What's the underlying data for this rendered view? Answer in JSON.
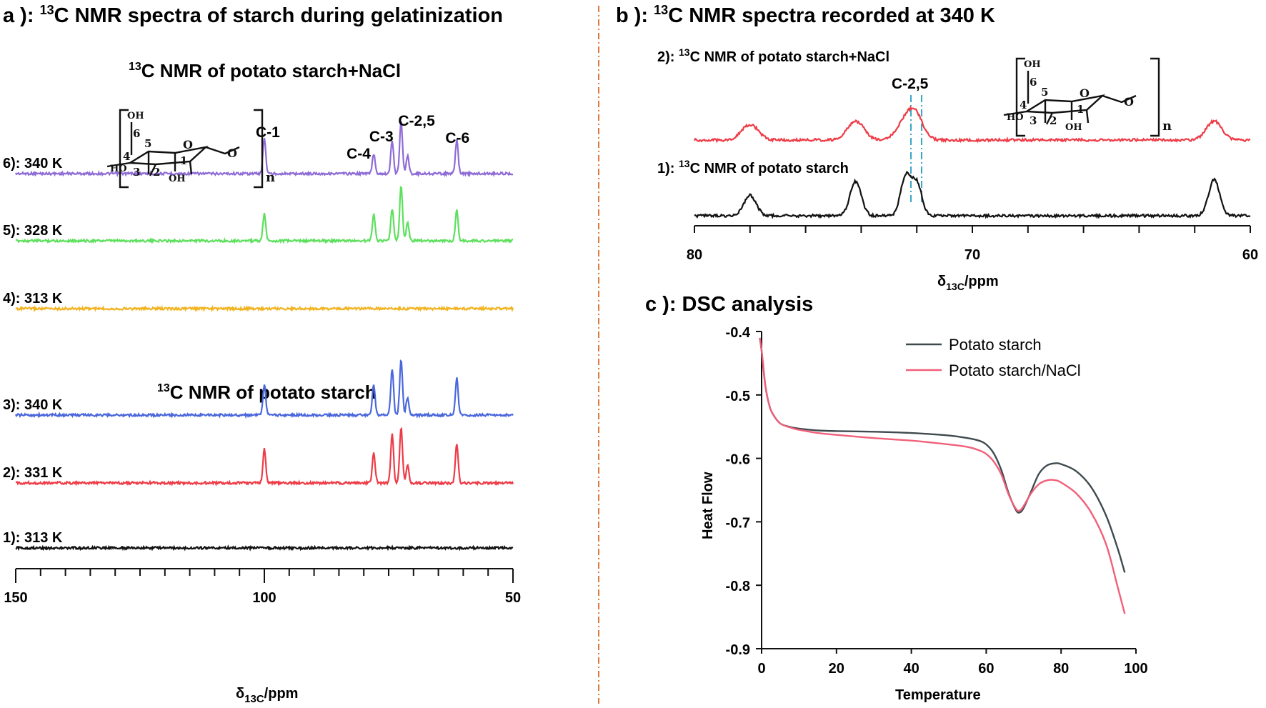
{
  "panel_a": {
    "title_prefix": "a ): ",
    "title_sup": "13",
    "title_rest": "C NMR spectra of starch during gelatinization",
    "group_top_sup": "13",
    "group_top": "C NMR of potato starch+NaCl",
    "group_bottom_sup": "13",
    "group_bottom": "C NMR of potato starch",
    "xlabel_main": "δ",
    "xlabel_sub": "13C",
    "xlabel_unit": "/ppm"
  },
  "panel_b": {
    "title_prefix": "b ): ",
    "title_sup": "13",
    "title_rest": "C NMR spectra recorded at 340 K",
    "trace2_prefix": "2): ",
    "trace2_sup": "13",
    "trace2_rest": "C NMR of potato starch+NaCl",
    "trace1_prefix": "1): ",
    "trace1_sup": "13",
    "trace1_rest": "C NMR of potato starch",
    "annotation": "C-2,5",
    "xlabel_main": "δ",
    "xlabel_sub": "13C",
    "xlabel_unit": "/ppm"
  },
  "panel_c": {
    "title": "c ): DSC analysis",
    "xlabel": "Temperature",
    "ylabel": "Heat Flow"
  },
  "structure": {
    "oh_top": "OH",
    "ho_left": "HO",
    "oh_bottom": "OH",
    "ring_o": "O",
    "link_o": "O",
    "n": "n",
    "c1": "1",
    "c2": "2",
    "c3": "3",
    "c4": "4",
    "c5": "5",
    "c6": "6"
  },
  "chart_data": [
    {
      "type": "line",
      "title": "a ): 13C NMR spectra of starch during gelatinization",
      "xlabel": "δ13C/ppm",
      "xlim": [
        150,
        50
      ],
      "xticks": [
        150,
        100,
        50
      ],
      "series": [
        {
          "name": "6): 340 K",
          "color": "#8e6bd6",
          "peaks": [
            [
              100.0,
              1.0
            ],
            [
              78.0,
              0.55
            ],
            [
              74.3,
              0.9
            ],
            [
              72.5,
              1.45
            ],
            [
              71.2,
              0.5
            ],
            [
              61.3,
              0.95
            ]
          ]
        },
        {
          "name": "5): 328 K",
          "color": "#5de05d",
          "peaks": [
            [
              100.0,
              0.75
            ],
            [
              78.0,
              0.75
            ],
            [
              74.3,
              0.9
            ],
            [
              72.5,
              1.55
            ],
            [
              71.2,
              0.5
            ],
            [
              61.3,
              0.85
            ]
          ]
        },
        {
          "name": "4): 313 K",
          "color": "#f2b320",
          "peaks": []
        },
        {
          "name": "3): 340 K",
          "color": "#4a67dc",
          "peaks": [
            [
              100.0,
              0.85
            ],
            [
              78.0,
              0.85
            ],
            [
              74.3,
              1.3
            ],
            [
              72.5,
              1.55
            ],
            [
              71.2,
              0.5
            ],
            [
              61.3,
              1.05
            ]
          ]
        },
        {
          "name": "2): 331 K",
          "color": "#ee3b46",
          "peaks": [
            [
              100.0,
              0.95
            ],
            [
              78.0,
              0.85
            ],
            [
              74.3,
              1.4
            ],
            [
              72.5,
              1.55
            ],
            [
              71.2,
              0.5
            ],
            [
              61.3,
              1.1
            ]
          ]
        },
        {
          "name": "1): 313 K",
          "color": "#111111",
          "peaks": []
        }
      ],
      "peak_labels": [
        {
          "text": "C-1",
          "ppm": 100.0
        },
        {
          "text": "C-4",
          "ppm": 78.0
        },
        {
          "text": "C-3",
          "ppm": 74.3
        },
        {
          "text": "C-2,5",
          "ppm": 72.5
        },
        {
          "text": "C-6",
          "ppm": 61.3
        }
      ]
    },
    {
      "type": "line",
      "title": "b ): 13C NMR spectra recorded at 340 K",
      "xlabel": "δ13C/ppm",
      "xlim": [
        80,
        60
      ],
      "xticks": [
        80,
        70,
        60
      ],
      "series": [
        {
          "name": "2): 13C NMR of potato starch+NaCl",
          "color": "#ee3b46",
          "peaks": [
            [
              78.0,
              0.45,
              0.3
            ],
            [
              74.2,
              0.55,
              0.3
            ],
            [
              72.3,
              0.7,
              0.35
            ],
            [
              72.0,
              0.35,
              0.25
            ],
            [
              61.3,
              0.55,
              0.28
            ]
          ]
        },
        {
          "name": "1): 13C NMR of potato starch",
          "color": "#111111",
          "peaks": [
            [
              78.0,
              0.6,
              0.22
            ],
            [
              74.2,
              1.0,
              0.2
            ],
            [
              72.4,
              1.15,
              0.18
            ],
            [
              72.0,
              0.95,
              0.18
            ],
            [
              61.3,
              1.05,
              0.2
            ]
          ]
        }
      ]
    },
    {
      "type": "line",
      "title": "c ): DSC analysis",
      "xlabel": "Temperature",
      "ylabel": "Heat Flow",
      "xlim": [
        0,
        100
      ],
      "ylim": [
        -0.9,
        -0.4
      ],
      "xticks": [
        0,
        20,
        40,
        60,
        80,
        100
      ],
      "yticks": [
        -0.4,
        -0.5,
        -0.6,
        -0.7,
        -0.8,
        -0.9
      ],
      "legend": "top-right",
      "series": [
        {
          "name": "Potato starch",
          "color": "#3f4a4f",
          "x": [
            -0.5,
            0,
            1,
            2,
            3,
            5,
            8,
            10,
            15,
            20,
            30,
            40,
            50,
            55,
            58,
            60,
            62,
            64,
            66,
            68,
            69,
            70,
            72,
            74,
            76,
            78,
            80,
            84,
            88,
            92,
            95,
            97
          ],
          "y": [
            -0.41,
            -0.43,
            -0.485,
            -0.515,
            -0.53,
            -0.545,
            -0.551,
            -0.553,
            -0.556,
            -0.557,
            -0.558,
            -0.56,
            -0.564,
            -0.568,
            -0.572,
            -0.578,
            -0.592,
            -0.618,
            -0.655,
            -0.682,
            -0.685,
            -0.678,
            -0.652,
            -0.625,
            -0.612,
            -0.608,
            -0.609,
            -0.62,
            -0.645,
            -0.69,
            -0.74,
            -0.78
          ]
        },
        {
          "name": "Potato starch/NaCl",
          "color": "#f0607a",
          "x": [
            -0.5,
            0,
            1,
            2,
            3,
            5,
            8,
            10,
            15,
            20,
            30,
            40,
            50,
            55,
            58,
            60,
            62,
            64,
            66,
            68,
            69,
            70,
            72,
            74,
            76,
            78,
            80,
            84,
            88,
            92,
            95,
            97
          ],
          "y": [
            -0.41,
            -0.43,
            -0.485,
            -0.515,
            -0.53,
            -0.545,
            -0.552,
            -0.555,
            -0.56,
            -0.563,
            -0.568,
            -0.572,
            -0.578,
            -0.582,
            -0.587,
            -0.593,
            -0.605,
            -0.625,
            -0.657,
            -0.68,
            -0.682,
            -0.675,
            -0.655,
            -0.641,
            -0.635,
            -0.634,
            -0.638,
            -0.655,
            -0.685,
            -0.735,
            -0.8,
            -0.845
          ]
        }
      ]
    }
  ]
}
